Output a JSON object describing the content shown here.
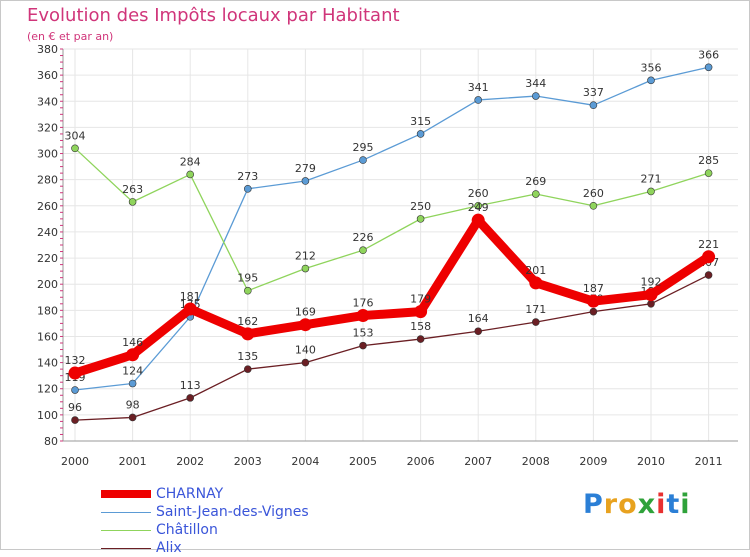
{
  "chart_data": {
    "type": "line",
    "title": "Evolution des Impôts locaux par Habitant",
    "subtitle": "(en € et par an)",
    "x": [
      "2000",
      "2001",
      "2002",
      "2003",
      "2004",
      "2005",
      "2006",
      "2007",
      "2008",
      "2009",
      "2010",
      "2011"
    ],
    "ylim": [
      80,
      380
    ],
    "yticks": [
      80,
      100,
      120,
      140,
      160,
      180,
      200,
      220,
      240,
      260,
      280,
      300,
      320,
      340,
      360,
      380
    ],
    "grid": true,
    "legend_position": "bottom-left",
    "series": [
      {
        "name": "Saint-Jean-des-Vignes",
        "color": "#5b9bd5",
        "values": [
          119,
          124,
          175,
          273,
          279,
          295,
          315,
          341,
          344,
          337,
          356,
          366
        ]
      },
      {
        "name": "Châtillon",
        "color": "#8fd45c",
        "values": [
          304,
          263,
          284,
          195,
          212,
          226,
          250,
          260,
          269,
          260,
          271,
          285
        ]
      },
      {
        "name": "Alix",
        "color": "#6b1f24",
        "values": [
          96,
          98,
          113,
          135,
          140,
          153,
          158,
          164,
          171,
          179,
          185,
          207
        ]
      },
      {
        "name": "CHARNAY",
        "color": "#ee0000",
        "values": [
          132,
          146,
          181,
          162,
          169,
          176,
          179,
          249,
          201,
          187,
          192,
          221
        ]
      }
    ]
  },
  "logo": {
    "letters": [
      "P",
      "r",
      "o",
      "x",
      "i",
      "t",
      "i"
    ],
    "colors": [
      "#2b7fd6",
      "#e8a21f",
      "#e8a21f",
      "#2fa23a",
      "#e83030",
      "#2b7fd6",
      "#2fa23a"
    ]
  }
}
